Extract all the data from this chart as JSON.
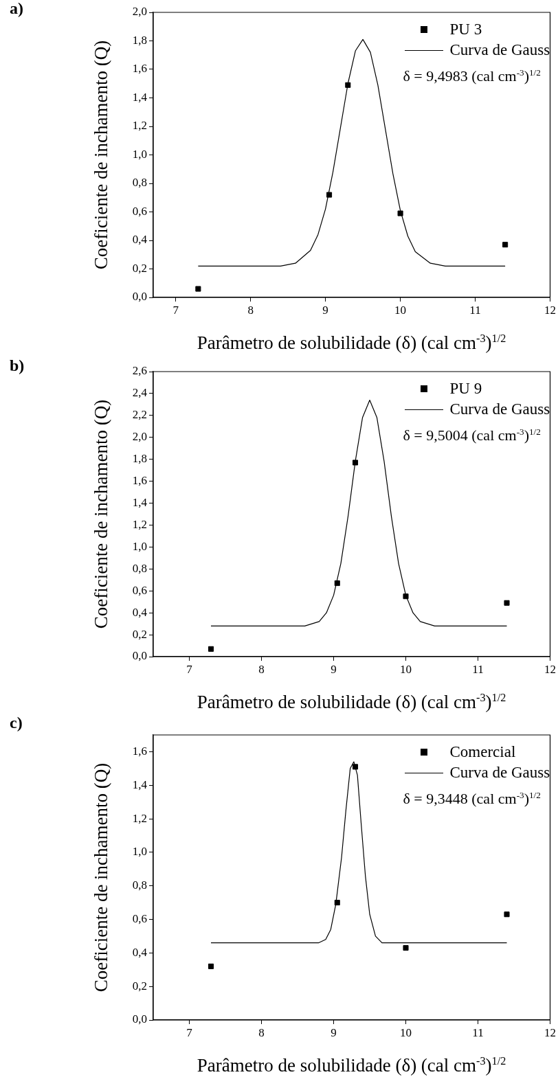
{
  "chart_data": [
    {
      "type": "scatter",
      "xlabel": "Parâmetro de solubilidade (δ) (cal cm$^{-3}$)$^{1/2}$",
      "ylabel": "Coeficiente de inchamento (Q)",
      "legend": "top right",
      "annotations": [
        "a)",
        "δ = 9,4983 (cal cm$^{-3}$)$^{1/2}$"
      ],
      "xlim": [
        6.7,
        12
      ],
      "xticks": [
        7,
        8,
        9,
        10,
        11,
        12
      ],
      "ylim": [
        0,
        2
      ],
      "yticks": [
        {
          "value": 0,
          "label": "0,0"
        },
        {
          "value": 0.2,
          "label": "0,2"
        },
        {
          "value": 0.4,
          "label": "0,4"
        },
        {
          "value": 0.6,
          "label": "0,6"
        },
        {
          "value": 0.8,
          "label": "0,8"
        },
        {
          "value": 1,
          "label": "1,0"
        },
        {
          "value": 1.2,
          "label": "1,2"
        },
        {
          "value": 1.4,
          "label": "1,4"
        },
        {
          "value": 1.6,
          "label": "1,6"
        },
        {
          "value": 1.8,
          "label": "1,8"
        },
        {
          "value": 2,
          "label": "2,0"
        }
      ],
      "series": [
        {
          "name": "PU 3",
          "marker": "square",
          "color": "#000000",
          "x": [
            7.3,
            9.05,
            9.3,
            10,
            11.4
          ],
          "values": [
            0.06,
            0.72,
            1.49,
            0.59,
            0.37
          ]
        },
        {
          "name": "Curva de Gauss",
          "type": "line",
          "marker": "none",
          "color": "#000000",
          "x": [
            7.3,
            8.4,
            8.6,
            8.8,
            8.9,
            9.0,
            9.1,
            9.2,
            9.3,
            9.4,
            9.5,
            9.6,
            9.7,
            9.8,
            9.9,
            10.0,
            10.1,
            10.2,
            10.4,
            10.6,
            11.4
          ],
          "values": [
            0.22,
            0.22,
            0.24,
            0.33,
            0.44,
            0.62,
            0.88,
            1.19,
            1.5,
            1.73,
            1.81,
            1.72,
            1.49,
            1.18,
            0.87,
            0.61,
            0.43,
            0.32,
            0.24,
            0.22,
            0.22
          ]
        }
      ]
    },
    {
      "type": "scatter",
      "xlabel": "Parâmetro de solubilidade (δ) (cal cm$^{-3}$)$^{1/2}$",
      "ylabel": "Coeficiente de inchamento (Q)",
      "legend": "top right",
      "annotations": [
        "b)",
        "δ = 9,5004 (cal cm$^{-3}$)$^{1/2}$"
      ],
      "xlim": [
        6.5,
        12
      ],
      "xticks": [
        7,
        8,
        9,
        10,
        11,
        12
      ],
      "ylim": [
        0,
        2.6
      ],
      "yticks": [
        {
          "value": 0,
          "label": "0,0"
        },
        {
          "value": 0.2,
          "label": "0,2"
        },
        {
          "value": 0.4,
          "label": "0,4"
        },
        {
          "value": 0.6,
          "label": "0,6"
        },
        {
          "value": 0.8,
          "label": "0,8"
        },
        {
          "value": 1,
          "label": "1,0"
        },
        {
          "value": 1.2,
          "label": "1,2"
        },
        {
          "value": 1.4,
          "label": "1,4"
        },
        {
          "value": 1.6,
          "label": "1,6"
        },
        {
          "value": 1.8,
          "label": "1,8"
        },
        {
          "value": 2,
          "label": "2,0"
        },
        {
          "value": 2.2,
          "label": "2,2"
        },
        {
          "value": 2.4,
          "label": "2,4"
        },
        {
          "value": 2.6,
          "label": "2,6"
        }
      ],
      "series": [
        {
          "name": "PU 9",
          "marker": "square",
          "color": "#000000",
          "x": [
            7.3,
            9.05,
            9.3,
            10,
            11.4
          ],
          "values": [
            0.07,
            0.67,
            1.77,
            0.55,
            0.49
          ]
        },
        {
          "name": "Curva de Gauss",
          "type": "line",
          "marker": "none",
          "color": "#000000",
          "x": [
            7.3,
            8.4,
            8.6,
            8.8,
            8.9,
            9.0,
            9.1,
            9.2,
            9.3,
            9.4,
            9.5,
            9.6,
            9.7,
            9.8,
            9.9,
            10.0,
            10.1,
            10.2,
            10.4,
            10.6,
            11.4
          ],
          "values": [
            0.28,
            0.28,
            0.28,
            0.32,
            0.4,
            0.56,
            0.85,
            1.28,
            1.78,
            2.18,
            2.34,
            2.18,
            1.78,
            1.28,
            0.85,
            0.56,
            0.4,
            0.32,
            0.28,
            0.28,
            0.28
          ]
        }
      ]
    },
    {
      "type": "scatter",
      "xlabel": "Parâmetro de solubilidade (δ) (cal cm$^{-3}$)$^{1/2}$",
      "ylabel": "Coeficiente de inchamento (Q)",
      "legend": "top right",
      "annotations": [
        "c)",
        "δ = 9,3448 (cal cm$^{-3}$)$^{1/2}$"
      ],
      "xlim": [
        6.5,
        12
      ],
      "xticks": [
        7,
        8,
        9,
        10,
        11,
        12
      ],
      "ylim": [
        0,
        1.7
      ],
      "yticks": [
        {
          "value": 0,
          "label": "0,0"
        },
        {
          "value": 0.2,
          "label": "0,2"
        },
        {
          "value": 0.4,
          "label": "0,4"
        },
        {
          "value": 0.6,
          "label": "0,6"
        },
        {
          "value": 0.8,
          "label": "0,8"
        },
        {
          "value": 1,
          "label": "1,0"
        },
        {
          "value": 1.2,
          "label": "1,2"
        },
        {
          "value": 1.4,
          "label": "1,4"
        },
        {
          "value": 1.6,
          "label": "1,6"
        }
      ],
      "series": [
        {
          "name": "Comercial",
          "marker": "square",
          "color": "#000000",
          "x": [
            7.3,
            9.05,
            9.3,
            10,
            11.4
          ],
          "values": [
            0.32,
            0.7,
            1.51,
            0.43,
            0.63
          ]
        },
        {
          "name": "Curva de Gauss",
          "type": "line",
          "marker": "none",
          "color": "#000000",
          "x": [
            7.3,
            8.79,
            8.89,
            8.96,
            9.03,
            9.11,
            9.17,
            9.23,
            9.28,
            9.33,
            9.38,
            9.44,
            9.5,
            9.58,
            9.67,
            11.4
          ],
          "values": [
            0.46,
            0.46,
            0.48,
            0.54,
            0.69,
            0.97,
            1.25,
            1.5,
            1.54,
            1.46,
            1.18,
            0.86,
            0.63,
            0.5,
            0.46,
            0.46
          ]
        }
      ]
    }
  ]
}
